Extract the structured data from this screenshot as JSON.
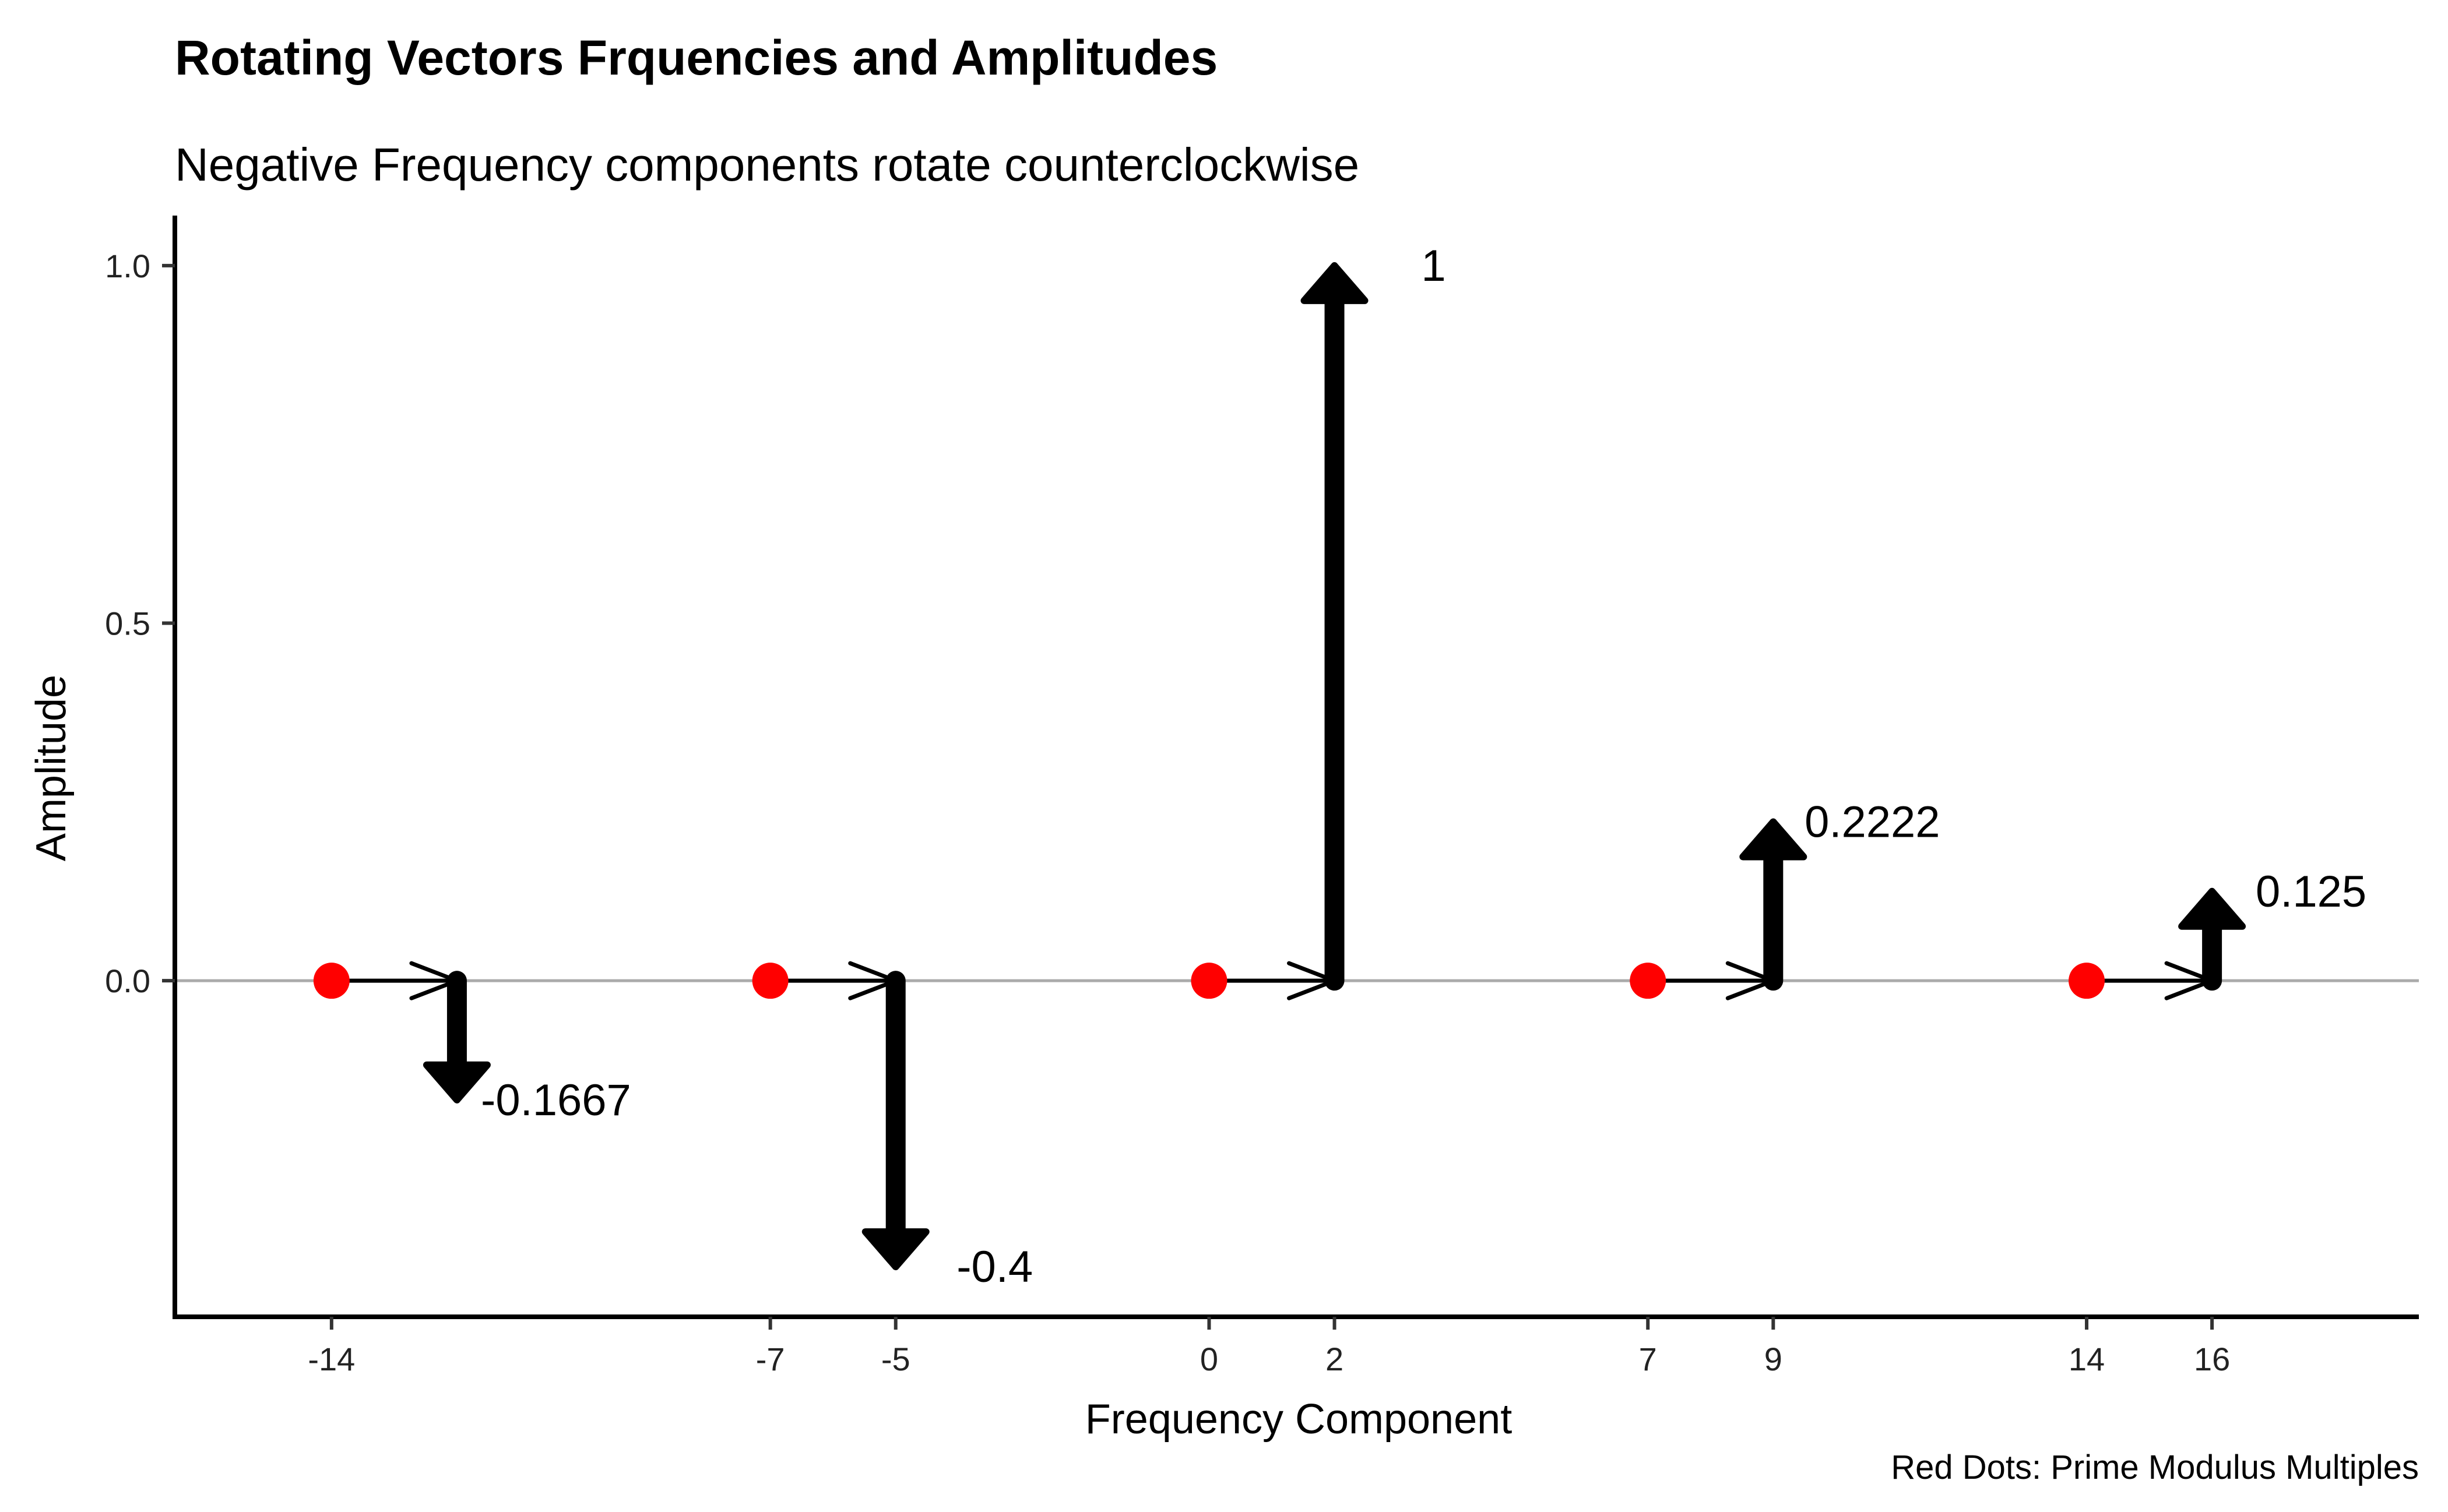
{
  "chart_data": {
    "type": "scatter",
    "title": "Rotating Vectors Frquencies and Amplitudes",
    "subtitle": "Negative Frequency components rotate counterclockwise",
    "xlabel": "Frequency Component",
    "ylabel": "Amplitude",
    "caption": "Red Dots: Prime Modulus Multiples",
    "xlim": [
      -16.5,
      19.3
    ],
    "ylim": [
      -0.47,
      1.07
    ],
    "x_ticks": [
      -14,
      -7,
      -5,
      0,
      2,
      7,
      9,
      14,
      16
    ],
    "x_tick_labels": [
      "-14",
      "-7",
      "-5",
      "0",
      "2",
      "7",
      "9",
      "14",
      "16"
    ],
    "y_ticks": [
      0.0,
      0.5,
      1.0
    ],
    "y_tick_labels": [
      "0.0",
      "0.5",
      "1.0"
    ],
    "grid": false,
    "zero_line": true,
    "red_dots_x": [
      -14,
      -7,
      0,
      7,
      14
    ],
    "vectors": [
      {
        "x_start": -14,
        "x_end": -12,
        "amplitude": -0.1667,
        "label": "-0.1667"
      },
      {
        "x_start": -7,
        "x_end": -5,
        "amplitude": -0.4,
        "label": "-0.4"
      },
      {
        "x_start": 0,
        "x_end": 2,
        "amplitude": 1,
        "label": "1"
      },
      {
        "x_start": 7,
        "x_end": 9,
        "amplitude": 0.2222,
        "label": "0.2222"
      },
      {
        "x_start": 14,
        "x_end": 16,
        "amplitude": 0.125,
        "label": "0.125"
      }
    ],
    "colors": {
      "dot": "#ff0000",
      "vector": "#000000",
      "zero_line": "#aaaaaa",
      "axis": "#000000"
    }
  }
}
